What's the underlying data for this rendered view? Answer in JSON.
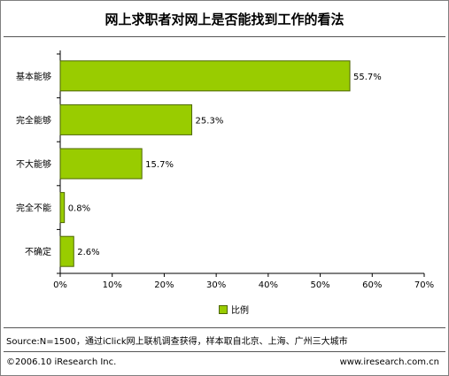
{
  "chart_data": {
    "type": "bar",
    "orientation": "horizontal",
    "title": "网上求职者对网上是否能找到工作的看法",
    "categories": [
      "基本能够",
      "完全能够",
      "不大能够",
      "完全不能",
      "不确定"
    ],
    "series": [
      {
        "name": "比例",
        "values": [
          55.7,
          25.3,
          15.7,
          0.8,
          2.6
        ]
      }
    ],
    "value_labels": [
      "55.7%",
      "25.3%",
      "15.7%",
      "0.8%",
      "2.6%"
    ],
    "xlim": [
      0,
      70
    ],
    "xticks": [
      0,
      10,
      20,
      30,
      40,
      50,
      60,
      70
    ],
    "xtick_labels": [
      "0%",
      "10%",
      "20%",
      "30%",
      "40%",
      "50%",
      "60%",
      "70%"
    ],
    "grid": false,
    "legend_position": "bottom",
    "bar_color": "#99cc00",
    "bar_border_color": "#4d6600"
  },
  "source": "Source:N=1500，通过iClick网上联机调查获得，样本取自北京、上海、广州三大城市",
  "copyright": "©2006.10 iResearch Inc.",
  "website": "www.iresearch.com.cn"
}
